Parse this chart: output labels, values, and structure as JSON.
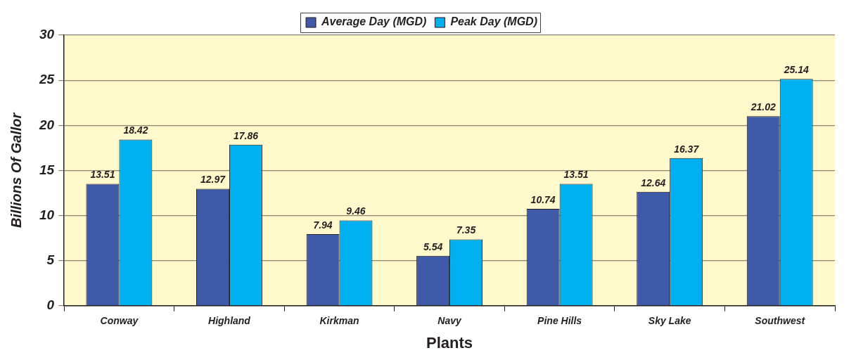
{
  "chart_data": {
    "type": "bar",
    "categories": [
      "Conway",
      "Highland",
      "Kirkman",
      "Navy",
      "Pine Hills",
      "Sky Lake",
      "Southwest"
    ],
    "series": [
      {
        "name": "Average Day (MGD)",
        "color": "#3f5aa8",
        "values": [
          13.51,
          12.97,
          7.94,
          5.54,
          10.74,
          12.64,
          21.02
        ]
      },
      {
        "name": "Peak Day (MGD)",
        "color": "#00b0f0",
        "values": [
          18.42,
          17.86,
          9.46,
          7.35,
          13.51,
          16.37,
          25.14
        ]
      }
    ],
    "xlabel": "Plants",
    "ylabel": "Billions Of Gallor",
    "ylim": [
      0,
      30
    ],
    "yticks": [
      0,
      5,
      10,
      15,
      20,
      25,
      30
    ],
    "grid": "y",
    "legend": "top",
    "data_labels": true
  }
}
